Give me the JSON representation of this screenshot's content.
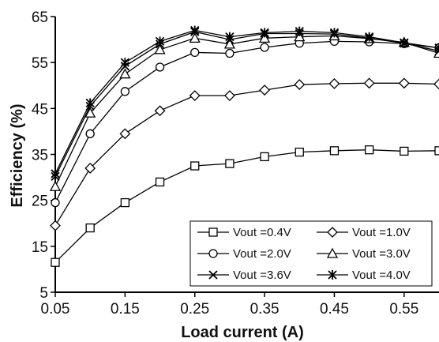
{
  "chart_data": {
    "type": "line",
    "xlabel": "Load current (A)",
    "ylabel": "Efficiency (%)",
    "xlim": [
      0.05,
      0.6
    ],
    "ylim": [
      5,
      65
    ],
    "x_ticks": [
      0.05,
      0.15,
      0.25,
      0.35,
      0.45,
      0.55
    ],
    "x_tick_labels": [
      "0.05",
      "0.15",
      "0.25",
      "0.35",
      "0.45",
      "0.55"
    ],
    "y_ticks": [
      5,
      15,
      25,
      35,
      45,
      55,
      65
    ],
    "y_tick_labels": [
      "5",
      "15",
      "25",
      "35",
      "45",
      "55",
      "65"
    ],
    "grid": false,
    "legend_position": "bottom-right",
    "x": [
      0.05,
      0.1,
      0.15,
      0.2,
      0.25,
      0.3,
      0.35,
      0.4,
      0.45,
      0.5,
      0.55,
      0.6
    ],
    "series": [
      {
        "name": "Vout =0.4V",
        "marker": "square",
        "values": [
          11.5,
          19,
          24.5,
          29,
          32.5,
          33,
          34.5,
          35.5,
          35.8,
          36,
          35.7,
          35.8
        ]
      },
      {
        "name": "Vout =1.0V",
        "marker": "diamond",
        "values": [
          19.5,
          32,
          39.5,
          44.5,
          47.8,
          47.8,
          49,
          50.2,
          50.4,
          50.5,
          50.5,
          50.3
        ]
      },
      {
        "name": "Vout =2.0V",
        "marker": "circle",
        "values": [
          24.5,
          39.5,
          48.7,
          54,
          57.2,
          57,
          58.3,
          59.2,
          59.6,
          59.5,
          59.1,
          58.2
        ]
      },
      {
        "name": "Vout =3.0V",
        "marker": "triangle",
        "values": [
          28,
          44,
          52.5,
          57.8,
          60.3,
          59,
          60.3,
          60.6,
          60.8,
          60.2,
          59.4,
          57
        ]
      },
      {
        "name": "Vout =3.6V",
        "marker": "x",
        "values": [
          30.2,
          45.5,
          54.2,
          59,
          61.7,
          60,
          61.3,
          61.3,
          61.2,
          60.3,
          59.2,
          57.5
        ]
      },
      {
        "name": "Vout =4.0V",
        "marker": "asterisk",
        "values": [
          30.8,
          46.2,
          55,
          59.6,
          62,
          60.6,
          61.5,
          61.8,
          61.5,
          60.6,
          59.3,
          58.2
        ]
      }
    ]
  }
}
